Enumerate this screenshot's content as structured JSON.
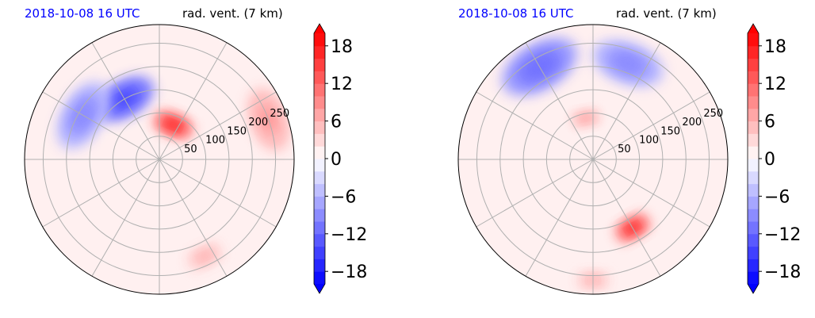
{
  "chart_data": [
    {
      "type": "heatmap",
      "projection": "polar",
      "title_left": "2018-10-08 16 UTC",
      "title_right": "rad. vent. (7 km)",
      "radial_ticks": [
        "50",
        "100",
        "150",
        "200",
        "250"
      ],
      "radial_tick_values": [
        50,
        100,
        150,
        200,
        250
      ],
      "r_max": 290,
      "colorbar": {
        "ticks": [
          "18",
          "12",
          "6",
          "0",
          "−6",
          "−12",
          "−18"
        ],
        "tick_values": [
          18,
          12,
          6,
          0,
          -6,
          -12,
          -18
        ],
        "range": [
          -20,
          20
        ],
        "extend": "both",
        "cmap": "bwr",
        "low_color": "#0000ff",
        "high_color": "#ff0000"
      },
      "features": [
        {
          "sign": "positive",
          "value": 18,
          "azimuth_deg": 22,
          "radius": 80,
          "extent": 45
        },
        {
          "sign": "negative",
          "value": -16,
          "azimuth_deg": 330,
          "radius": 150,
          "extent": 70
        },
        {
          "sign": "negative",
          "value": -10,
          "azimuth_deg": 300,
          "radius": 190,
          "extent": 80
        },
        {
          "sign": "positive",
          "value": 8,
          "azimuth_deg": 70,
          "radius": 250,
          "extent": 70
        },
        {
          "sign": "positive",
          "value": 6,
          "azimuth_deg": 155,
          "radius": 230,
          "extent": 40
        }
      ]
    },
    {
      "type": "heatmap",
      "projection": "polar",
      "title_left": "2018-10-08 16 UTC",
      "title_right": "rad. vent. (7 km)",
      "radial_ticks": [
        "50",
        "100",
        "150",
        "200",
        "250"
      ],
      "radial_tick_values": [
        50,
        100,
        150,
        200,
        250
      ],
      "r_max": 290,
      "colorbar": {
        "ticks": [
          "18",
          "12",
          "6",
          "0",
          "−6",
          "−12",
          "−18"
        ],
        "tick_values": [
          18,
          12,
          6,
          0,
          -6,
          -12,
          -18
        ],
        "range": [
          -20,
          20
        ],
        "extend": "both",
        "cmap": "bwr",
        "low_color": "#0000ff",
        "high_color": "#ff0000"
      },
      "features": [
        {
          "sign": "negative",
          "value": -12,
          "azimuth_deg": 330,
          "radius": 230,
          "extent": 90
        },
        {
          "sign": "negative",
          "value": -10,
          "azimuth_deg": 20,
          "radius": 220,
          "extent": 80
        },
        {
          "sign": "positive",
          "value": 18,
          "azimuth_deg": 150,
          "radius": 170,
          "extent": 40
        },
        {
          "sign": "positive",
          "value": 8,
          "azimuth_deg": 350,
          "radius": 90,
          "extent": 30
        },
        {
          "sign": "positive",
          "value": 6,
          "azimuth_deg": 180,
          "radius": 260,
          "extent": 35
        }
      ]
    }
  ]
}
